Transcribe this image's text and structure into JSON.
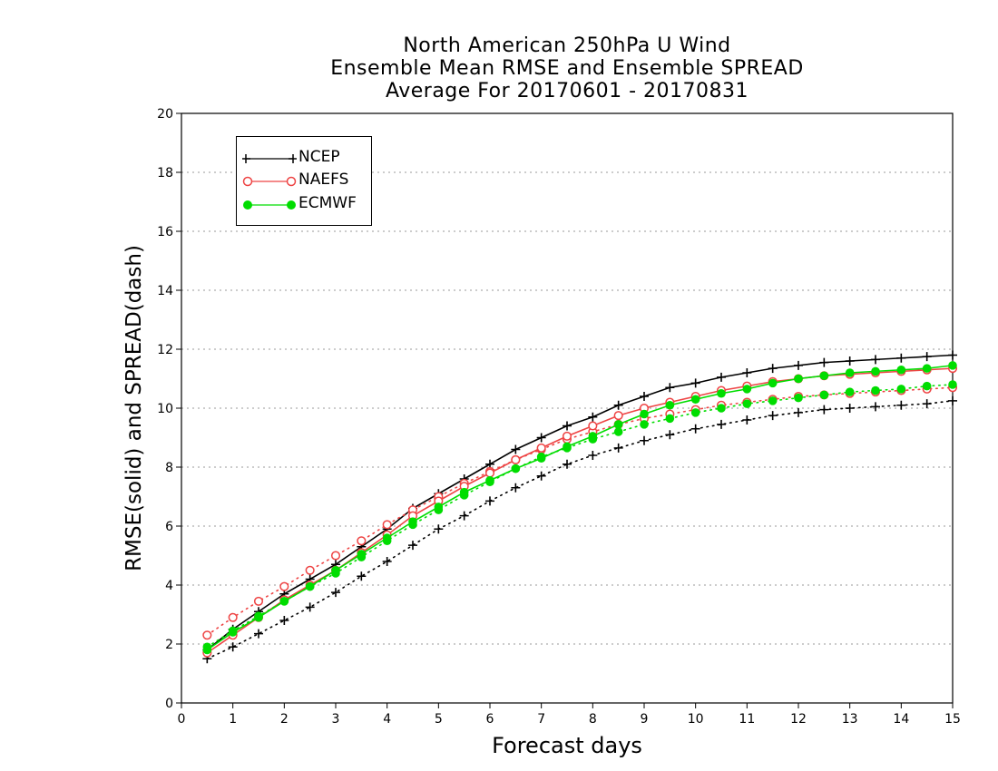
{
  "chart_data": {
    "type": "line",
    "title": [
      "North American 250hPa U Wind",
      "Ensemble Mean RMSE and Ensemble SPREAD",
      "Average For 20170601 - 20170831"
    ],
    "xlabel": "Forecast days",
    "ylabel": "RMSE(solid) and SPREAD(dash)",
    "xlim": [
      0,
      15
    ],
    "ylim": [
      0,
      20
    ],
    "xticks": [
      "0",
      "1",
      "2",
      "3",
      "4",
      "5",
      "6",
      "7",
      "8",
      "9",
      "10",
      "11",
      "12",
      "13",
      "14",
      "15"
    ],
    "yticks": [
      "0",
      "2",
      "4",
      "6",
      "8",
      "10",
      "12",
      "14",
      "16",
      "18",
      "20"
    ],
    "grid": "horizontal dotted",
    "legend_position": "top-left",
    "x": [
      0.5,
      1,
      1.5,
      2,
      2.5,
      3,
      3.5,
      4,
      4.5,
      5,
      5.5,
      6,
      6.5,
      7,
      7.5,
      8,
      8.5,
      9,
      9.5,
      10,
      10.5,
      11,
      11.5,
      12,
      12.5,
      13,
      13.5,
      14,
      14.5,
      15
    ],
    "series": [
      {
        "name": "NCEP",
        "color": "#000000",
        "marker": "plus",
        "rmse": [
          1.8,
          2.5,
          3.1,
          3.7,
          4.2,
          4.7,
          5.3,
          5.9,
          6.6,
          7.1,
          7.6,
          8.1,
          8.6,
          9.0,
          9.4,
          9.7,
          10.1,
          10.4,
          10.7,
          10.85,
          11.05,
          11.2,
          11.35,
          11.45,
          11.55,
          11.6,
          11.65,
          11.7,
          11.75,
          11.8
        ],
        "spread": [
          1.5,
          1.9,
          2.35,
          2.8,
          3.25,
          3.75,
          4.3,
          4.8,
          5.35,
          5.9,
          6.35,
          6.85,
          7.3,
          7.7,
          8.1,
          8.4,
          8.65,
          8.9,
          9.1,
          9.3,
          9.45,
          9.6,
          9.75,
          9.85,
          9.95,
          10.0,
          10.05,
          10.1,
          10.15,
          10.25
        ]
      },
      {
        "name": "NAEFS",
        "color": "#ee4444",
        "marker": "open-circle",
        "rmse": [
          1.7,
          2.3,
          2.9,
          3.5,
          4.0,
          4.5,
          5.1,
          5.7,
          6.35,
          6.85,
          7.35,
          7.8,
          8.25,
          8.65,
          9.05,
          9.4,
          9.75,
          10.0,
          10.2,
          10.4,
          10.6,
          10.75,
          10.9,
          11.0,
          11.1,
          11.15,
          11.2,
          11.25,
          11.3,
          11.35
        ],
        "spread": [
          2.3,
          2.9,
          3.45,
          3.95,
          4.5,
          5.0,
          5.5,
          6.05,
          6.55,
          7.0,
          7.45,
          7.85,
          8.25,
          8.6,
          8.95,
          9.2,
          9.45,
          9.65,
          9.8,
          9.95,
          10.1,
          10.2,
          10.3,
          10.4,
          10.45,
          10.5,
          10.55,
          10.6,
          10.65,
          10.7
        ]
      },
      {
        "name": "ECMWF",
        "color": "#00dd00",
        "marker": "filled-circle",
        "rmse": [
          1.8,
          2.4,
          2.9,
          3.45,
          3.95,
          4.5,
          5.05,
          5.6,
          6.15,
          6.65,
          7.15,
          7.55,
          7.95,
          8.3,
          8.7,
          9.05,
          9.45,
          9.8,
          10.1,
          10.3,
          10.5,
          10.65,
          10.85,
          11.0,
          11.1,
          11.2,
          11.25,
          11.3,
          11.35,
          11.45
        ],
        "spread": [
          1.9,
          2.45,
          2.95,
          3.45,
          3.95,
          4.4,
          4.95,
          5.5,
          6.05,
          6.55,
          7.05,
          7.5,
          7.95,
          8.35,
          8.65,
          8.95,
          9.2,
          9.45,
          9.65,
          9.85,
          10.0,
          10.15,
          10.25,
          10.35,
          10.45,
          10.55,
          10.6,
          10.65,
          10.75,
          10.8
        ]
      }
    ]
  }
}
